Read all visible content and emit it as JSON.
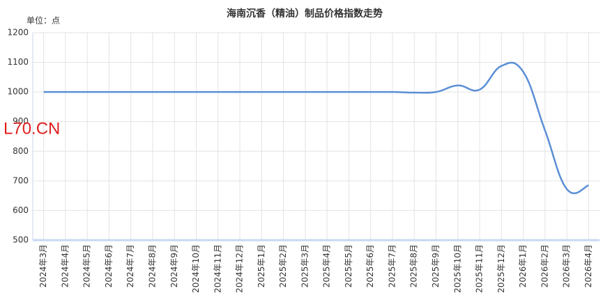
{
  "chart_data": {
    "type": "line",
    "title": "海南沉香（精油）制品价格指数走势",
    "y_unit": "单位：点",
    "watermark": "L70.CN",
    "categories": [
      "2024年3月",
      "2024年4月",
      "2024年5月",
      "2024年6月",
      "2024年7月",
      "2024年8月",
      "2024年9月",
      "2024年10月",
      "2024年11月",
      "2024年12月",
      "2025年1月",
      "2025年2月",
      "2025年3月",
      "2025年4月",
      "2025年5月",
      "2025年6月",
      "2025年7月",
      "2025年8月",
      "2025年9月",
      "2025年10月",
      "2025年11月",
      "2025年12月",
      "2026年1月",
      "2026年2月",
      "2026年3月",
      "2026年4月"
    ],
    "series": [
      {
        "color": "#5b8fd4",
        "values": [
          1000,
          1000,
          1000,
          1000,
          1000,
          1000,
          1000,
          1000,
          1000,
          1000,
          1000,
          1000,
          1000,
          1000,
          1000,
          1000,
          1000,
          998,
          1000,
          1022,
          1008,
          1088,
          1068,
          870,
          672,
          685
        ]
      }
    ],
    "ylim": [
      500,
      1200
    ],
    "yticks": [
      500,
      600,
      700,
      800,
      900,
      1000,
      1100,
      1200
    ],
    "grid": true
  }
}
